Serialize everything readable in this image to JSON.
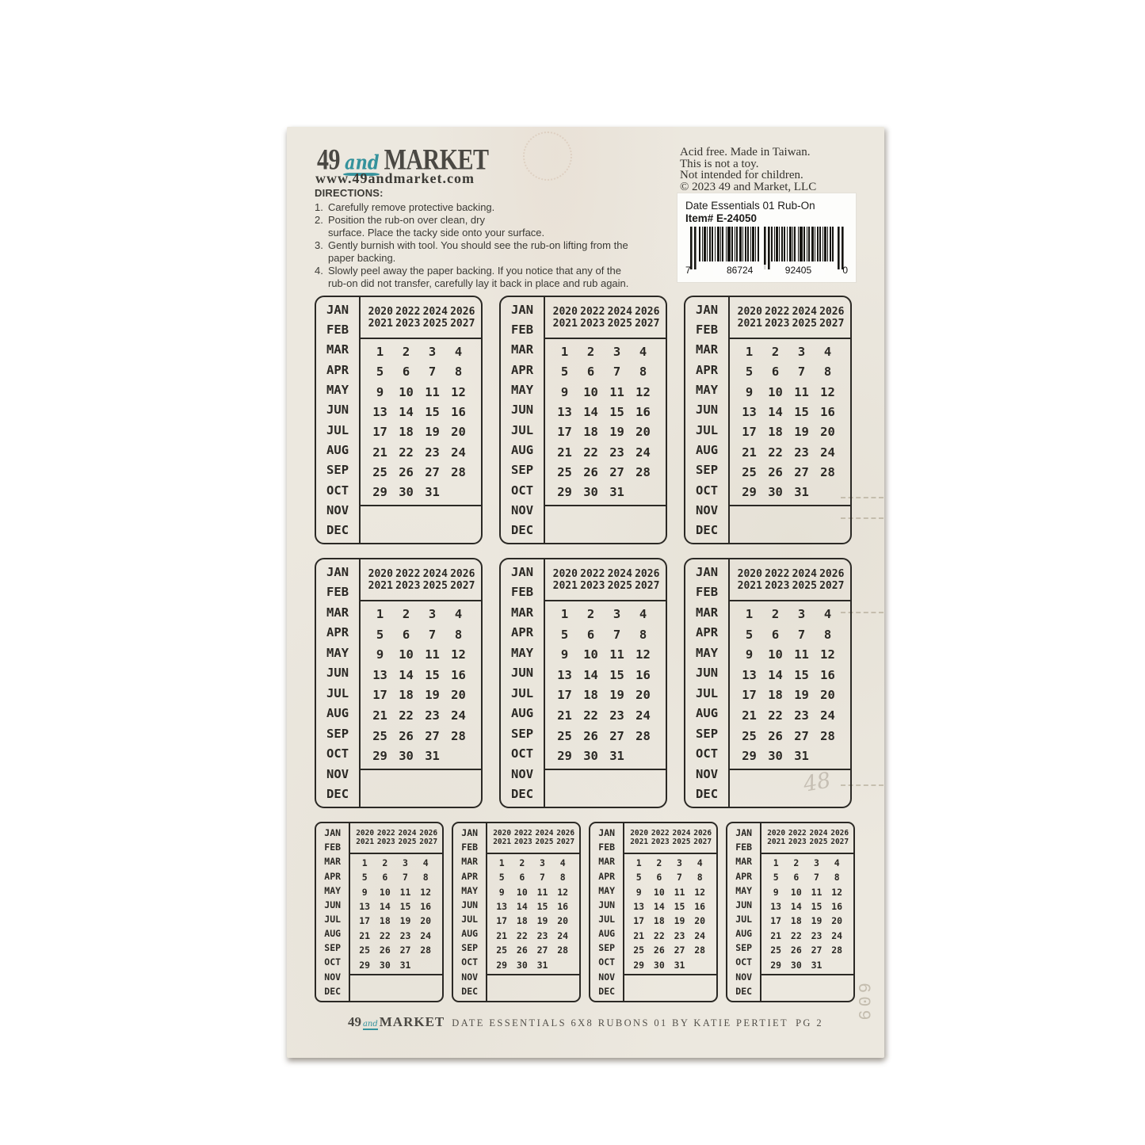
{
  "sheet": {
    "bg": "#ece8df",
    "ink": "#2b2925",
    "teal": "#34929c"
  },
  "header": {
    "logo": {
      "num": "49",
      "and": "and",
      "market": "MARKET"
    },
    "website": "www.49andmarket.com",
    "directions": {
      "heading": "DIRECTIONS:",
      "items": [
        {
          "num": "1.",
          "text": "Carefully remove protective backing."
        },
        {
          "num": "2.",
          "text": "Position the rub-on over clean, dry\nsurface. Place the tacky side onto your surface."
        },
        {
          "num": "3.",
          "text": "Gently burnish with tool. You should see the rub-on lifting from the\npaper backing."
        },
        {
          "num": "4.",
          "text": "Slowly peel away the paper backing. If you notice that any of the\nrub-on did not transfer, carefully lay it back in place and rub again."
        }
      ]
    },
    "notices": [
      "Acid free. Made in Taiwan.",
      "This is not a toy.",
      "Not intended for children.",
      "© 2023 49 and Market, LLC"
    ],
    "barcode": {
      "title": "Date Essentials 01 Rub-On",
      "item": "Item# E-24050",
      "digits": [
        "7",
        "86724",
        "92405",
        "0"
      ]
    }
  },
  "calendar": {
    "months": [
      "JAN",
      "FEB",
      "MAR",
      "APR",
      "MAY",
      "JUN",
      "JUL",
      "AUG",
      "SEP",
      "OCT",
      "NOV",
      "DEC"
    ],
    "year_rows": [
      [
        "2020",
        "2022",
        "2024",
        "2026"
      ],
      [
        "2021",
        "2023",
        "2025",
        "2027"
      ]
    ],
    "day_rows": [
      [
        "1",
        "2",
        "3",
        "4"
      ],
      [
        "5",
        "6",
        "7",
        "8"
      ],
      [
        "9",
        "10",
        "11",
        "12"
      ],
      [
        "13",
        "14",
        "15",
        "16"
      ],
      [
        "17",
        "18",
        "19",
        "20"
      ],
      [
        "21",
        "22",
        "23",
        "24"
      ],
      [
        "25",
        "26",
        "27",
        "28"
      ],
      [
        "29",
        "30",
        "31",
        ""
      ]
    ]
  },
  "calendar_rows": [
    {
      "count": 3,
      "size": "large"
    },
    {
      "count": 3,
      "size": "large"
    },
    {
      "count": 4,
      "size": "small"
    }
  ],
  "footer": {
    "logo": {
      "num": "49",
      "and": "and",
      "market": "MARKET"
    },
    "text": "DATE ESSENTIALS 6X8 RUBONS 01 BY KATIE PERTIET",
    "page": "PG 2"
  },
  "texture": {
    "ghost_number_strip": "609",
    "ghost_pencil_mark": "48"
  }
}
